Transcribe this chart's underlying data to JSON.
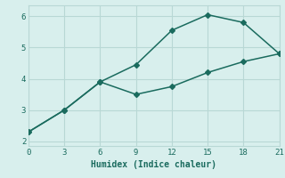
{
  "line1_x": [
    0,
    3,
    6,
    9,
    12,
    15,
    18,
    21
  ],
  "line1_y": [
    2.3,
    3.0,
    3.9,
    4.45,
    5.55,
    6.05,
    5.8,
    4.8
  ],
  "line2_x": [
    0,
    3,
    6,
    9,
    12,
    15,
    18,
    21
  ],
  "line2_y": [
    2.3,
    3.0,
    3.9,
    3.5,
    3.75,
    4.2,
    4.55,
    4.8
  ],
  "color": "#1a6b5e",
  "xlabel": "Humidex (Indice chaleur)",
  "xlim": [
    0,
    21
  ],
  "ylim": [
    1.85,
    6.35
  ],
  "xticks": [
    0,
    3,
    6,
    9,
    12,
    15,
    18,
    21
  ],
  "yticks": [
    2,
    3,
    4,
    5,
    6
  ],
  "bg_color": "#d8efed",
  "grid_color": "#b8d8d5",
  "marker": "D",
  "markersize": 3.0,
  "linewidth": 1.1
}
